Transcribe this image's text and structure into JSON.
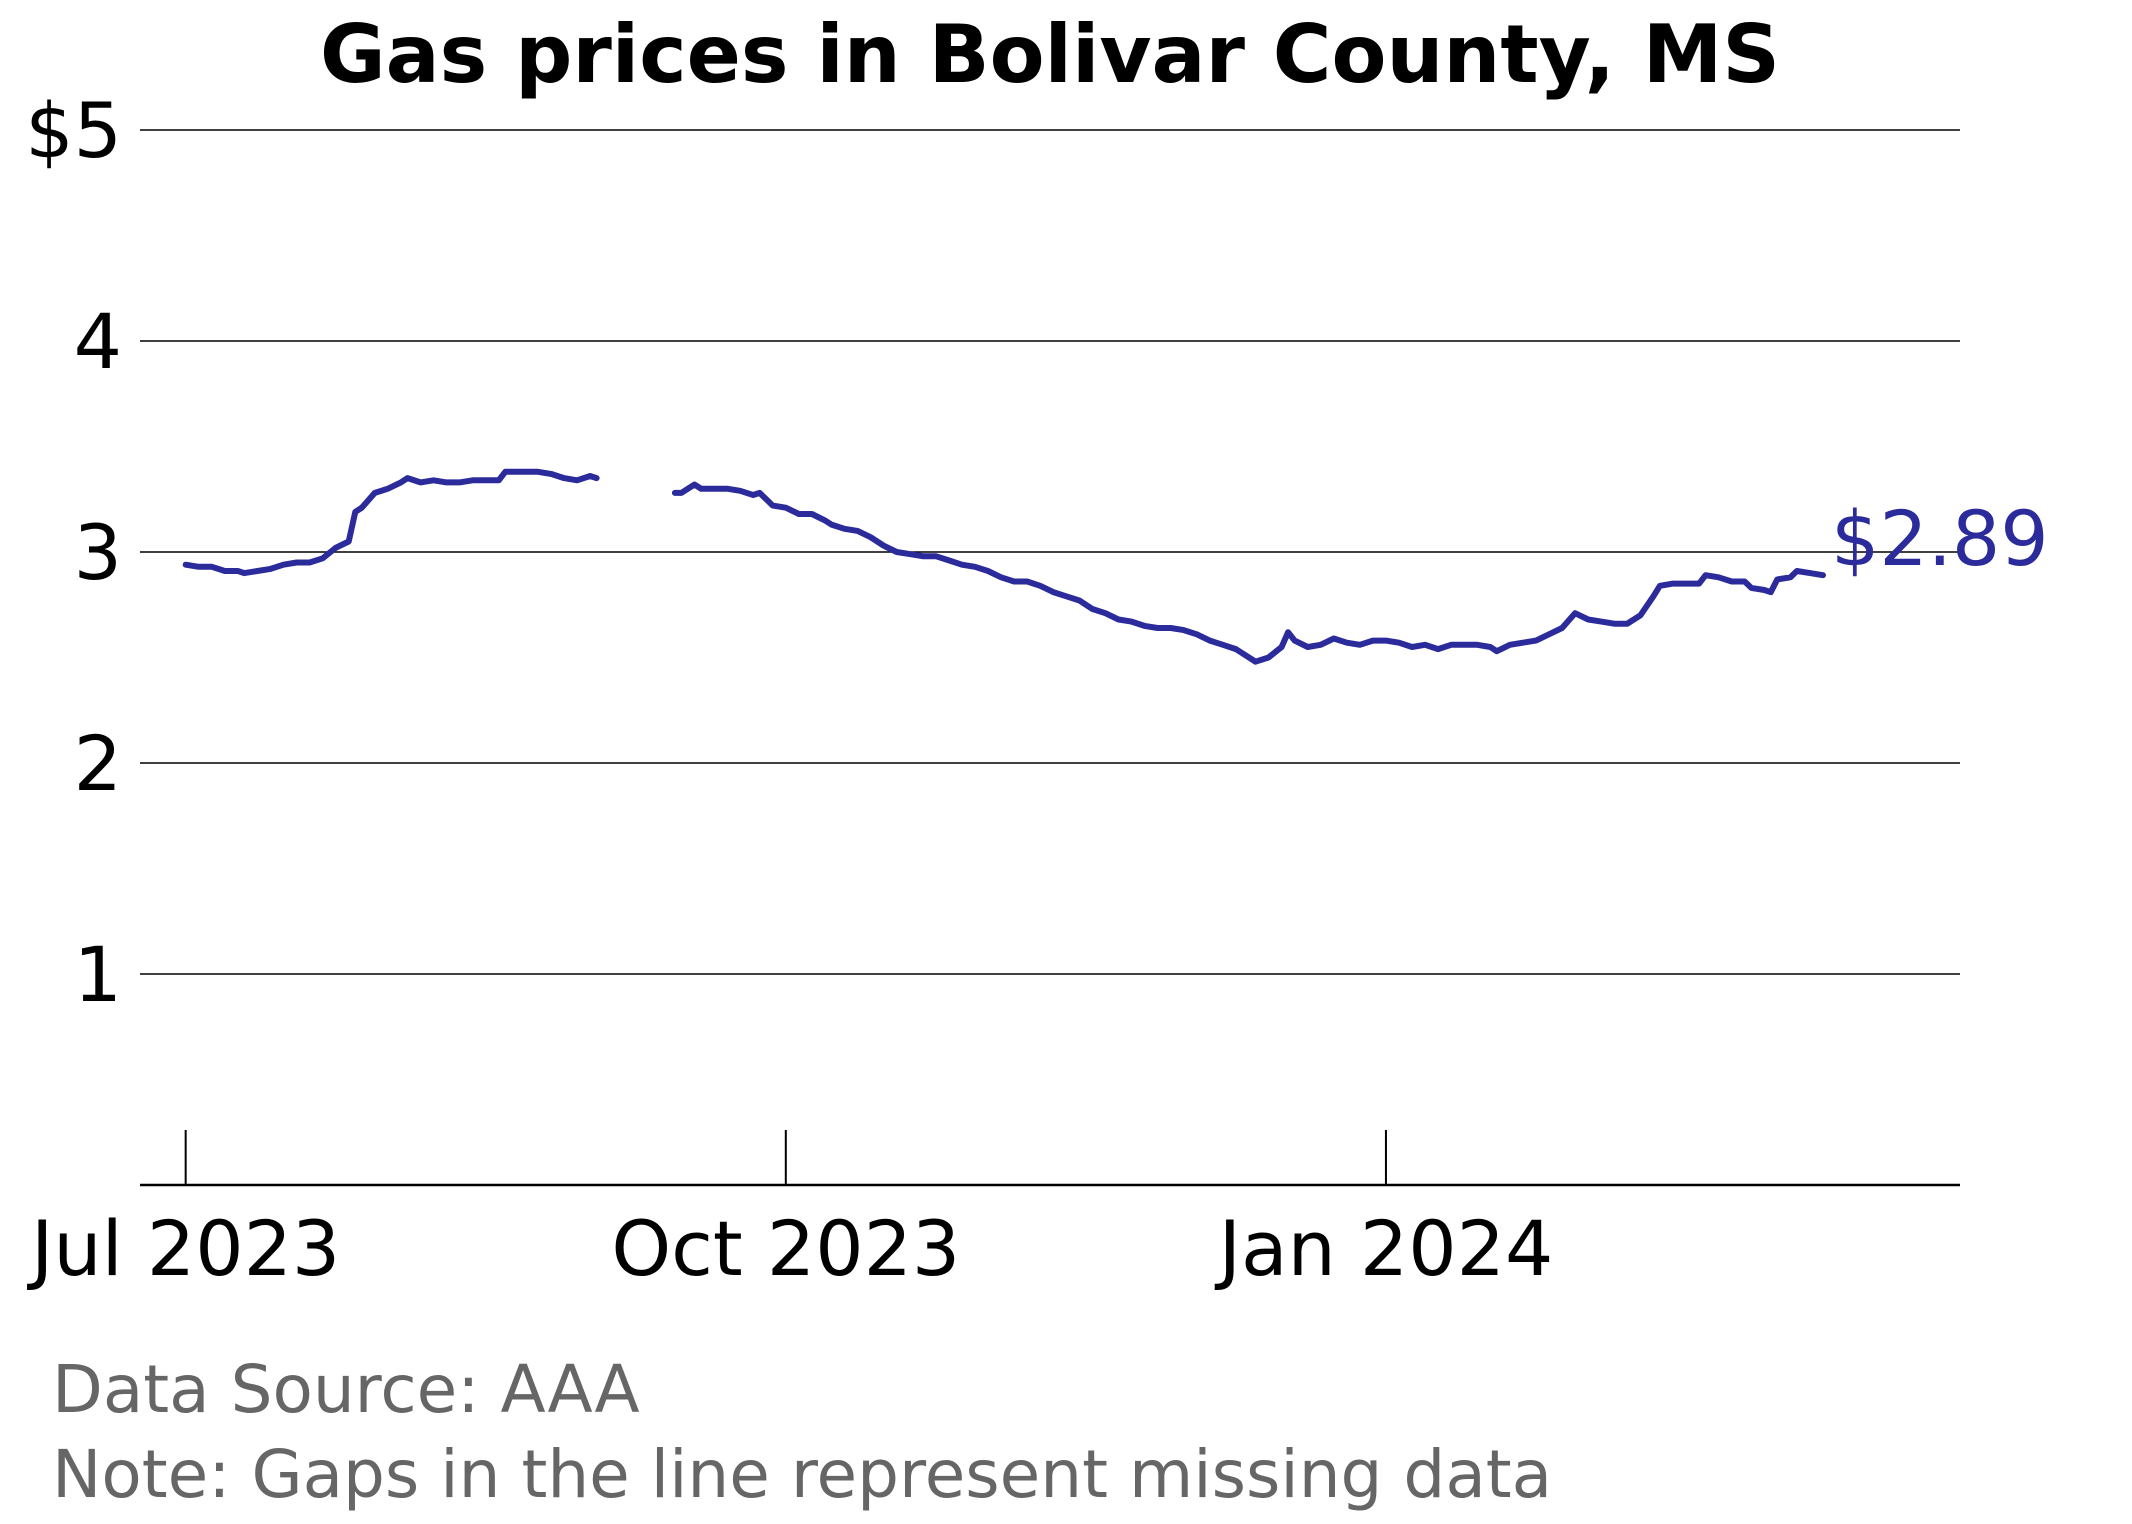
{
  "chart_data": {
    "type": "line",
    "title": "Gas prices in Bolivar County, MS",
    "xlabel": "",
    "ylabel": "",
    "ylim": [
      0,
      5
    ],
    "xlim": [
      "2023-06-24",
      "2024-03-29"
    ],
    "y_ticks": [
      {
        "value": 1,
        "label": "1"
      },
      {
        "value": 2,
        "label": "2"
      },
      {
        "value": 3,
        "label": "3"
      },
      {
        "value": 4,
        "label": "4"
      },
      {
        "value": 5,
        "label": "$5"
      }
    ],
    "x_ticks": [
      {
        "date": "2023-07-01",
        "label": "Jul 2023"
      },
      {
        "date": "2023-10-01",
        "label": "Oct 2023"
      },
      {
        "date": "2024-01-01",
        "label": "Jan 2024"
      }
    ],
    "grid": "horizontal",
    "line_color": "#2b2b9c",
    "end_label": "$2.89",
    "series": [
      {
        "segments": [
          [
            [
              "2023-07-01",
              2.94
            ],
            [
              "2023-07-03",
              2.93
            ],
            [
              "2023-07-05",
              2.93
            ],
            [
              "2023-07-06",
              2.92
            ],
            [
              "2023-07-07",
              2.91
            ],
            [
              "2023-07-09",
              2.91
            ],
            [
              "2023-07-10",
              2.9
            ],
            [
              "2023-07-12",
              2.91
            ],
            [
              "2023-07-14",
              2.92
            ],
            [
              "2023-07-16",
              2.94
            ],
            [
              "2023-07-18",
              2.95
            ],
            [
              "2023-07-20",
              2.95
            ],
            [
              "2023-07-22",
              2.97
            ],
            [
              "2023-07-24",
              3.02
            ],
            [
              "2023-07-26",
              3.05
            ],
            [
              "2023-07-27",
              3.19
            ],
            [
              "2023-07-28",
              3.21
            ],
            [
              "2023-07-30",
              3.28
            ],
            [
              "2023-08-01",
              3.3
            ],
            [
              "2023-08-03",
              3.33
            ],
            [
              "2023-08-04",
              3.35
            ],
            [
              "2023-08-06",
              3.33
            ],
            [
              "2023-08-08",
              3.34
            ],
            [
              "2023-08-10",
              3.33
            ],
            [
              "2023-08-12",
              3.33
            ],
            [
              "2023-08-14",
              3.34
            ],
            [
              "2023-08-16",
              3.34
            ],
            [
              "2023-08-18",
              3.34
            ],
            [
              "2023-08-19",
              3.38
            ],
            [
              "2023-08-22",
              3.38
            ],
            [
              "2023-08-24",
              3.38
            ],
            [
              "2023-08-26",
              3.37
            ],
            [
              "2023-08-28",
              3.35
            ],
            [
              "2023-08-30",
              3.34
            ],
            [
              "2023-09-01",
              3.36
            ],
            [
              "2023-09-02",
              3.35
            ]
          ],
          [
            [
              "2023-09-14",
              3.28
            ],
            [
              "2023-09-15",
              3.28
            ],
            [
              "2023-09-17",
              3.32
            ],
            [
              "2023-09-18",
              3.3
            ],
            [
              "2023-09-20",
              3.3
            ],
            [
              "2023-09-22",
              3.3
            ],
            [
              "2023-09-24",
              3.29
            ],
            [
              "2023-09-26",
              3.27
            ],
            [
              "2023-09-27",
              3.28
            ],
            [
              "2023-09-29",
              3.22
            ],
            [
              "2023-10-01",
              3.21
            ],
            [
              "2023-10-03",
              3.18
            ],
            [
              "2023-10-05",
              3.18
            ],
            [
              "2023-10-07",
              3.15
            ],
            [
              "2023-10-08",
              3.13
            ],
            [
              "2023-10-10",
              3.11
            ],
            [
              "2023-10-12",
              3.1
            ],
            [
              "2023-10-14",
              3.07
            ],
            [
              "2023-10-16",
              3.03
            ],
            [
              "2023-10-18",
              3.0
            ],
            [
              "2023-10-20",
              2.99
            ],
            [
              "2023-10-22",
              2.98
            ],
            [
              "2023-10-24",
              2.98
            ],
            [
              "2023-10-26",
              2.96
            ],
            [
              "2023-10-28",
              2.94
            ],
            [
              "2023-10-30",
              2.93
            ],
            [
              "2023-11-01",
              2.91
            ],
            [
              "2023-11-03",
              2.88
            ],
            [
              "2023-11-05",
              2.86
            ],
            [
              "2023-11-07",
              2.86
            ],
            [
              "2023-11-09",
              2.84
            ],
            [
              "2023-11-11",
              2.81
            ],
            [
              "2023-11-13",
              2.79
            ],
            [
              "2023-11-15",
              2.77
            ],
            [
              "2023-11-17",
              2.73
            ],
            [
              "2023-11-19",
              2.71
            ],
            [
              "2023-11-21",
              2.68
            ],
            [
              "2023-11-23",
              2.67
            ],
            [
              "2023-11-25",
              2.65
            ],
            [
              "2023-11-27",
              2.64
            ],
            [
              "2023-11-29",
              2.64
            ],
            [
              "2023-12-01",
              2.63
            ],
            [
              "2023-12-03",
              2.61
            ],
            [
              "2023-12-05",
              2.58
            ],
            [
              "2023-12-07",
              2.56
            ],
            [
              "2023-12-09",
              2.54
            ],
            [
              "2023-12-11",
              2.5
            ],
            [
              "2023-12-12",
              2.48
            ],
            [
              "2023-12-14",
              2.5
            ],
            [
              "2023-12-16",
              2.55
            ],
            [
              "2023-12-17",
              2.62
            ],
            [
              "2023-12-18",
              2.58
            ],
            [
              "2023-12-20",
              2.55
            ],
            [
              "2023-12-22",
              2.56
            ],
            [
              "2023-12-24",
              2.59
            ],
            [
              "2023-12-26",
              2.57
            ],
            [
              "2023-12-28",
              2.56
            ],
            [
              "2023-12-30",
              2.58
            ],
            [
              "2024-01-01",
              2.58
            ],
            [
              "2024-01-03",
              2.57
            ],
            [
              "2024-01-05",
              2.55
            ],
            [
              "2024-01-07",
              2.56
            ],
            [
              "2024-01-09",
              2.54
            ],
            [
              "2024-01-11",
              2.56
            ],
            [
              "2024-01-13",
              2.56
            ],
            [
              "2024-01-15",
              2.56
            ],
            [
              "2024-01-17",
              2.55
            ],
            [
              "2024-01-18",
              2.53
            ],
            [
              "2024-01-20",
              2.56
            ],
            [
              "2024-01-22",
              2.57
            ],
            [
              "2024-01-24",
              2.58
            ],
            [
              "2024-01-26",
              2.61
            ],
            [
              "2024-01-28",
              2.64
            ],
            [
              "2024-01-30",
              2.71
            ],
            [
              "2024-02-01",
              2.68
            ],
            [
              "2024-02-03",
              2.67
            ],
            [
              "2024-02-05",
              2.66
            ],
            [
              "2024-02-07",
              2.66
            ],
            [
              "2024-02-09",
              2.7
            ],
            [
              "2024-02-11",
              2.79
            ],
            [
              "2024-02-12",
              2.84
            ],
            [
              "2024-02-14",
              2.85
            ],
            [
              "2024-02-16",
              2.85
            ],
            [
              "2024-02-18",
              2.85
            ],
            [
              "2024-02-19",
              2.89
            ],
            [
              "2024-02-21",
              2.88
            ],
            [
              "2024-02-23",
              2.86
            ],
            [
              "2024-02-25",
              2.86
            ],
            [
              "2024-02-26",
              2.83
            ],
            [
              "2024-02-28",
              2.82
            ],
            [
              "2024-02-29",
              2.81
            ],
            [
              "2024-03-01",
              2.87
            ],
            [
              "2024-03-03",
              2.88
            ],
            [
              "2024-03-04",
              2.91
            ],
            [
              "2024-03-06",
              2.9
            ],
            [
              "2024-03-08",
              2.89
            ]
          ]
        ]
      }
    ]
  },
  "footnotes": {
    "source": "Data Source: AAA",
    "note": "Note: Gaps in the line represent missing data"
  }
}
